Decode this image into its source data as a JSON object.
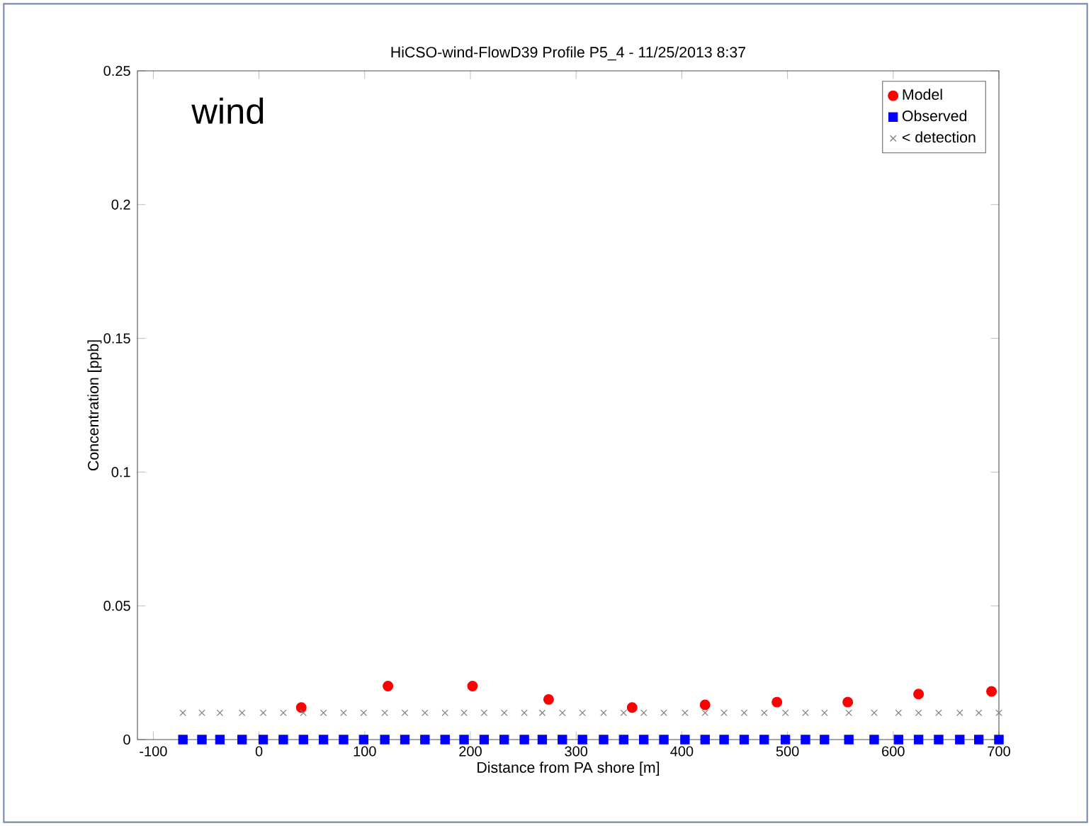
{
  "chart_data": {
    "type": "scatter",
    "title": "HiCSO-wind-FlowD39 Profile P5_4 - 11/25/2013 8:37",
    "xlabel": "Distance from PA shore [m]",
    "ylabel": "Concentration [ppb]",
    "annotations": [
      "wind"
    ],
    "xlim": [
      -115,
      700
    ],
    "ylim": [
      0,
      0.25
    ],
    "xticks": [
      -100,
      0,
      100,
      200,
      300,
      400,
      500,
      600,
      700
    ],
    "yticks": [
      0,
      0.05,
      0.1,
      0.15,
      0.2,
      0.25
    ],
    "grid": false,
    "legend": "top right",
    "series": [
      {
        "name": "Model",
        "color": "#ff0000",
        "marker": "circle",
        "x": [
          40,
          122,
          202,
          274,
          353,
          422,
          490,
          557,
          624,
          693
        ],
        "values": [
          0.012,
          0.02,
          0.02,
          0.015,
          0.012,
          0.013,
          0.014,
          0.014,
          0.017,
          0.018
        ]
      },
      {
        "name": "Observed",
        "color": "#0000ff",
        "marker": "square",
        "x": [
          -72,
          -54,
          -37,
          -16,
          4,
          23,
          42,
          61,
          80,
          99,
          119,
          138,
          157,
          176,
          194,
          213,
          232,
          251,
          268,
          287,
          306,
          326,
          345,
          364,
          383,
          403,
          422,
          440,
          459,
          478,
          498,
          517,
          535,
          558,
          582,
          605,
          624,
          643,
          663,
          681,
          700
        ],
        "values": [
          0,
          0,
          0,
          0,
          0,
          0,
          0,
          0,
          0,
          0,
          0,
          0,
          0,
          0,
          0,
          0,
          0,
          0,
          0,
          0,
          0,
          0,
          0,
          0,
          0,
          0,
          0,
          0,
          0,
          0,
          0,
          0,
          0,
          0,
          0,
          0,
          0,
          0,
          0,
          0,
          0
        ]
      },
      {
        "name": "< detection",
        "color": "#808080",
        "marker": "cross",
        "x": [
          -72,
          -54,
          -37,
          -16,
          4,
          23,
          42,
          61,
          80,
          99,
          119,
          138,
          157,
          176,
          194,
          213,
          232,
          251,
          268,
          287,
          306,
          326,
          345,
          364,
          383,
          403,
          422,
          440,
          459,
          478,
          498,
          517,
          535,
          558,
          582,
          605,
          624,
          643,
          663,
          681,
          700
        ],
        "values": [
          0.01,
          0.01,
          0.01,
          0.01,
          0.01,
          0.01,
          0.01,
          0.01,
          0.01,
          0.01,
          0.01,
          0.01,
          0.01,
          0.01,
          0.01,
          0.01,
          0.01,
          0.01,
          0.01,
          0.01,
          0.01,
          0.01,
          0.01,
          0.01,
          0.01,
          0.01,
          0.01,
          0.01,
          0.01,
          0.01,
          0.01,
          0.01,
          0.01,
          0.01,
          0.01,
          0.01,
          0.01,
          0.01,
          0.01,
          0.01,
          0.01
        ]
      }
    ]
  }
}
